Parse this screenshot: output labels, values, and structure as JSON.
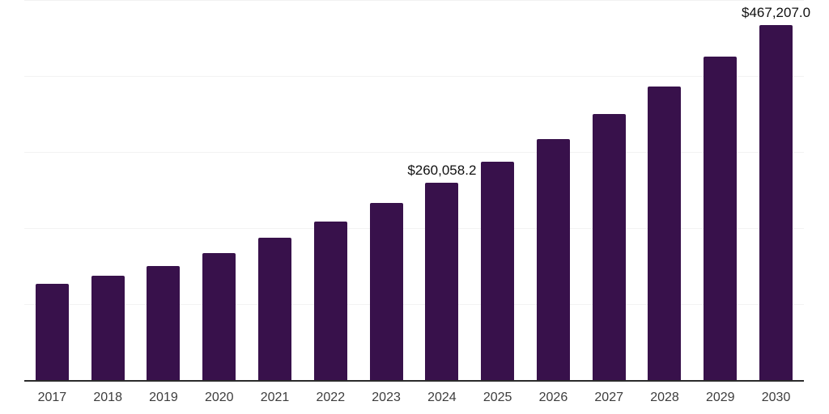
{
  "chart_data": {
    "type": "bar",
    "title": "",
    "xlabel": "",
    "ylabel": "",
    "categories": [
      "2017",
      "2018",
      "2019",
      "2020",
      "2021",
      "2022",
      "2023",
      "2024",
      "2025",
      "2026",
      "2027",
      "2028",
      "2029",
      "2030"
    ],
    "values": [
      126500,
      137000,
      150000,
      167000,
      187000,
      208000,
      232500,
      260058.2,
      287000,
      317000,
      350500,
      386500,
      425500,
      467207.0
    ],
    "point_labels": [
      "",
      "",
      "",
      "",
      "",
      "",
      "",
      "$260,058.2",
      "",
      "",
      "",
      "",
      "",
      "$467,207.0"
    ],
    "ylim": [
      0,
      500000
    ],
    "gridlines_y": [
      100000,
      200000,
      300000,
      400000,
      500000
    ],
    "grid": "horizontal-light",
    "legend": "none",
    "y_axis_ticks_visible": false,
    "bar_color": "#38114B",
    "gridline_color": "#f2f2f2",
    "axis_line_color": "#2b2b2b",
    "x_tick_color": "#3d3d3d",
    "value_label_color": "#111111"
  }
}
